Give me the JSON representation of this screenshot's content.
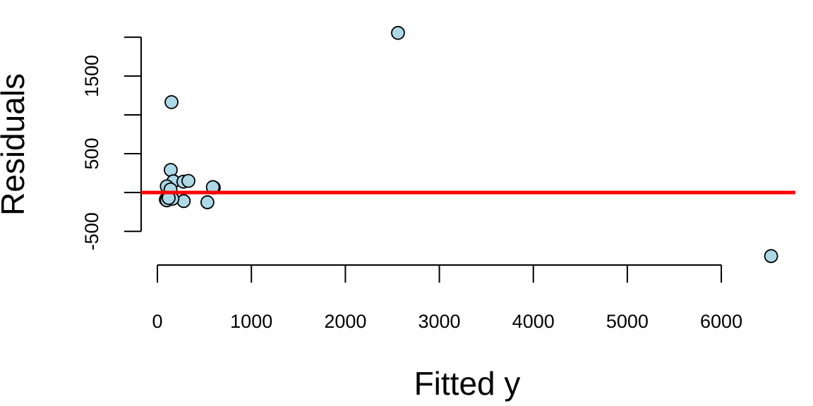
{
  "chart_data": {
    "type": "scatter",
    "x_label": "Fitted y",
    "y_label": "Residuals",
    "x": [
      2560,
      6530,
      150,
      142,
      170,
      277,
      330,
      600,
      590,
      100,
      140,
      90,
      100,
      280,
      532,
      160,
      120
    ],
    "values": [
      2055,
      -818,
      1164,
      291,
      145,
      140,
      150,
      64,
      70,
      80,
      40,
      -90,
      -100,
      -110,
      -125,
      -80,
      -70
    ],
    "color": "#add8e6",
    "xlim": [
      -173,
      6788
    ],
    "ylim": [
      -933,
      2170
    ],
    "xticks": [
      0,
      1000,
      2000,
      3000,
      4000,
      5000,
      6000
    ],
    "yticks": [
      -500,
      500,
      1500
    ],
    "ytick_marks": [
      -500,
      0,
      500,
      1000,
      1500,
      2000
    ],
    "hline": 0,
    "hline_color": "#ff0000"
  }
}
